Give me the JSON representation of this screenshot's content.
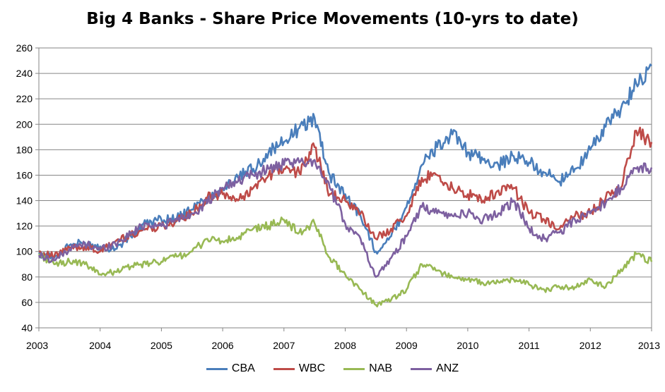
{
  "chart_data": {
    "type": "line",
    "title": "Big 4 Banks - Share Price Movements (10-yrs to date)",
    "xlabel": "",
    "ylabel": "",
    "xlim": [
      2003,
      2013
    ],
    "ylim": [
      40,
      260
    ],
    "x_ticks": [
      "2003",
      "2004",
      "2005",
      "2006",
      "2007",
      "2008",
      "2009",
      "2010",
      "2011",
      "2012",
      "2013"
    ],
    "y_ticks": [
      "40",
      "60",
      "80",
      "100",
      "120",
      "140",
      "160",
      "180",
      "200",
      "220",
      "240",
      "260"
    ],
    "grid": true,
    "legend_position": "bottom",
    "x": [
      2003.0,
      2003.25,
      2003.5,
      2003.75,
      2004.0,
      2004.25,
      2004.5,
      2004.75,
      2005.0,
      2005.25,
      2005.5,
      2005.75,
      2006.0,
      2006.25,
      2006.5,
      2006.75,
      2007.0,
      2007.25,
      2007.5,
      2007.75,
      2008.0,
      2008.25,
      2008.5,
      2008.75,
      2009.0,
      2009.25,
      2009.5,
      2009.75,
      2010.0,
      2010.25,
      2010.5,
      2010.75,
      2011.0,
      2011.25,
      2011.5,
      2011.75,
      2012.0,
      2012.25,
      2012.5,
      2012.75,
      2013.0
    ],
    "series": [
      {
        "name": "CBA",
        "color": "#4a7ebb",
        "values": [
          98,
          95,
          105,
          107,
          104,
          102,
          112,
          122,
          125,
          126,
          133,
          142,
          150,
          158,
          165,
          178,
          186,
          197,
          205,
          160,
          145,
          128,
          100,
          112,
          135,
          168,
          182,
          192,
          178,
          172,
          168,
          175,
          170,
          162,
          155,
          165,
          180,
          198,
          212,
          232,
          246
        ]
      },
      {
        "name": "WBC",
        "color": "#be4b48",
        "values": [
          100,
          96,
          103,
          104,
          100,
          108,
          113,
          118,
          120,
          124,
          130,
          142,
          145,
          140,
          150,
          160,
          165,
          162,
          182,
          145,
          140,
          130,
          110,
          118,
          128,
          158,
          160,
          150,
          145,
          140,
          148,
          150,
          130,
          125,
          118,
          128,
          130,
          142,
          150,
          195,
          186
        ]
      },
      {
        "name": "NAB",
        "color": "#98b954",
        "values": [
          98,
          90,
          92,
          90,
          82,
          84,
          88,
          90,
          92,
          96,
          100,
          110,
          108,
          110,
          118,
          120,
          125,
          115,
          122,
          95,
          82,
          70,
          58,
          62,
          70,
          90,
          85,
          80,
          78,
          75,
          76,
          78,
          74,
          70,
          72,
          72,
          78,
          72,
          86,
          98,
          92
        ]
      },
      {
        "name": "ANZ",
        "color": "#7d60a0",
        "values": [
          97,
          93,
          102,
          106,
          102,
          106,
          114,
          122,
          120,
          125,
          130,
          138,
          150,
          155,
          160,
          165,
          168,
          170,
          172,
          150,
          122,
          110,
          80,
          95,
          112,
          135,
          130,
          128,
          130,
          125,
          130,
          140,
          118,
          110,
          115,
          125,
          130,
          138,
          150,
          165,
          166
        ]
      }
    ]
  }
}
